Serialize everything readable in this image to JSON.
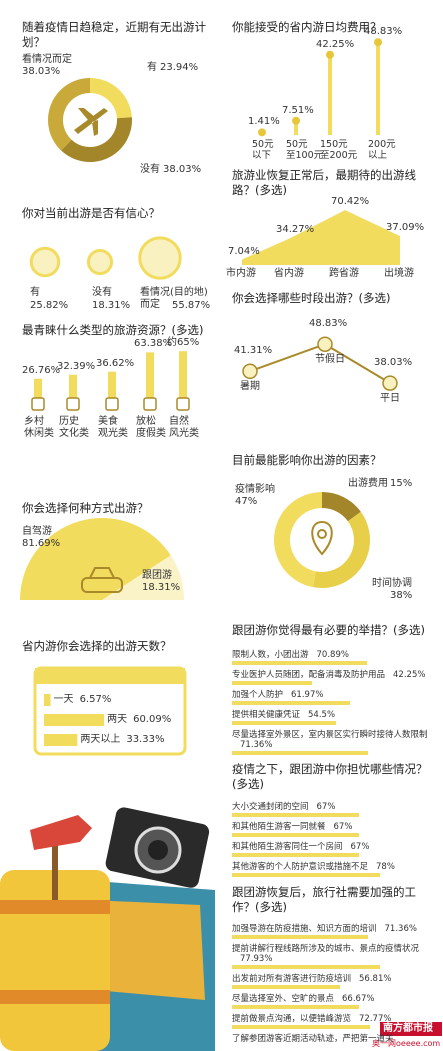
{
  "chart_data": [
    {
      "type": "donut",
      "title": "随着疫情日趋稳定，近期有无出游计划？",
      "categories": [
        "看情况而定",
        "有",
        "没有"
      ],
      "values": [
        38.03,
        23.94,
        38.03
      ],
      "value_labels": [
        "38.03%",
        "23.94%",
        "38.03%"
      ],
      "colors": [
        "#c9a93a",
        "#f2dc5d",
        "#a3852a"
      ]
    },
    {
      "type": "circles",
      "title": "你对当前出游是否有信心？",
      "categories": [
        "有",
        "没有",
        "看情况(目的地)\n而定"
      ],
      "values": [
        25.82,
        18.31,
        55.87
      ],
      "value_labels": [
        "25.82%",
        "18.31%",
        "55.87%"
      ],
      "color": "#f2dc5d"
    },
    {
      "type": "bar",
      "title": "最青睐什么类型的旅游资源？(多选)",
      "categories": [
        "乡村\n休闲类",
        "历史\n文化类",
        "美食\n观光类",
        "放松\n度假类",
        "自然\n风光类"
      ],
      "values": [
        26.76,
        32.39,
        36.62,
        63.38,
        65
      ],
      "value_labels": [
        "26.76%",
        "32.39%",
        "36.62%",
        "63.38%",
        "约65%"
      ],
      "color": "#f2dc5d"
    },
    {
      "type": "halfpie",
      "title": "你会选择何种方式出游？",
      "categories": [
        "自驾游",
        "跟团游"
      ],
      "values": [
        81.69,
        18.31
      ],
      "value_labels": [
        "81.69%",
        "18.31%"
      ],
      "colors": [
        "#f2dc5d",
        "#faf3c8"
      ]
    },
    {
      "type": "calendar",
      "title": "省内游你会选择的出游天数？",
      "categories": [
        "一天",
        "两天",
        "两天以上"
      ],
      "values": [
        6.57,
        60.09,
        33.33
      ],
      "value_labels": [
        "6.57%",
        "60.09%",
        "33.33%"
      ],
      "color": "#f2dc5d"
    },
    {
      "type": "column",
      "title": "你能接受的省内游日均费用？",
      "categories": [
        "50元\n以下",
        "50元\n至100元",
        "150元\n至200元",
        "200元\n以上"
      ],
      "values": [
        1.41,
        7.51,
        42.25,
        48.83
      ],
      "value_labels": [
        "1.41%",
        "7.51%",
        "42.25%",
        "48.83%"
      ],
      "color": "#f2dc5d"
    },
    {
      "type": "area",
      "title": "旅游业恢复正常后，最期待的出游线路？(多选)",
      "categories": [
        "市内游",
        "省内游",
        "跨省游",
        "出境游"
      ],
      "values": [
        7.04,
        34.27,
        70.42,
        37.09
      ],
      "value_labels": [
        "7.04%",
        "34.27%",
        "70.42%",
        "37.09%"
      ],
      "color": "#f2dc5d"
    },
    {
      "type": "line",
      "title": "你会选择哪些时段出游？(多选)",
      "categories": [
        "暑期",
        "节假日",
        "平日"
      ],
      "values": [
        41.31,
        48.83,
        38.03
      ],
      "value_labels": [
        "41.31%",
        "48.83%",
        "38.03%"
      ],
      "color": "#a98a2a"
    },
    {
      "type": "donut",
      "title": "目前最能影响你出游的因素？",
      "categories": [
        "疫情影响",
        "出游费用",
        "时间协调"
      ],
      "values": [
        47,
        15,
        38
      ],
      "value_labels": [
        "47%",
        "15%",
        "38%"
      ],
      "colors": [
        "#f2dc5d",
        "#a3852a",
        "#e8cf4a"
      ]
    },
    {
      "type": "hbar",
      "title": "跟团游你觉得最有必要的举措？(多选)",
      "categories": [
        "限制人数，小团出游",
        "专业医护人员随团，配备消毒及防护用品",
        "加强个人防护",
        "提供相关健康凭证",
        "尽量选择室外景区，室内景区实行瞬时接待人数限制"
      ],
      "values": [
        70.89,
        42.25,
        61.97,
        54.5,
        71.36
      ],
      "value_labels": [
        "70.89%",
        "42.25%",
        "61.97%",
        "54.5%",
        "71.36%"
      ],
      "color": "#f2dc5d"
    },
    {
      "type": "hbar",
      "title": "疫情之下，跟团游中你担忧哪些情况？(多选)",
      "categories": [
        "大小交通封闭的空间",
        "和其他陌生游客一同就餐",
        "和其他陌生游客同住一个房间",
        "其他游客的个人防护意识或措施不足"
      ],
      "values": [
        67,
        67,
        67,
        78
      ],
      "value_labels": [
        "67%",
        "67%",
        "67%",
        "78%"
      ],
      "color": "#f2dc5d"
    },
    {
      "type": "hbar",
      "title": "跟团游恢复后，旅行社需要加强的工作？(多选)",
      "categories": [
        "加强导游在防疫措施、知识方面的培训",
        "提前讲解行程线路所涉及的城市、景点的疫情状况",
        "出发前对所有游客进行防疫培训",
        "尽量选择室外、空旷的景点",
        "提前做景点沟通，以便错峰游览"
      ],
      "values": [
        71.36,
        77.93,
        56.81,
        66.67,
        72.77
      ],
      "value_labels": [
        "71.36%",
        "77.93%",
        "56.81%",
        "66.67%",
        "72.77%"
      ],
      "extra_item": "了解参团游客近期活动轨迹，严把第一道关",
      "color": "#f2dc5d"
    }
  ],
  "watermark": {
    "brand": "南方都市报",
    "site": "奥一网oeeee.com"
  }
}
